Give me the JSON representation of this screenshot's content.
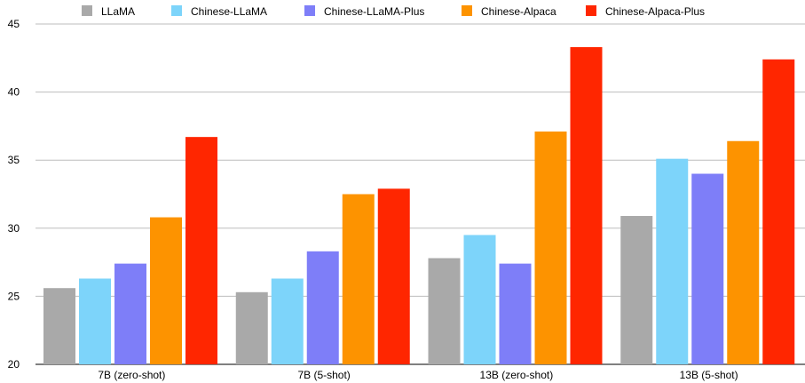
{
  "chart_data": {
    "type": "bar",
    "title": "",
    "xlabel": "",
    "ylabel": "",
    "ylim": [
      20,
      45
    ],
    "yticks": [
      20,
      25,
      30,
      35,
      40,
      45
    ],
    "grid": "horizontal",
    "legend_position": "top",
    "categories": [
      "7B (zero-shot)",
      "7B (5-shot)",
      "13B (zero-shot)",
      "13B (5-shot)"
    ],
    "series": [
      {
        "name": "LLaMA",
        "color": "#a9a9a9",
        "values": [
          25.6,
          25.3,
          27.8,
          30.9
        ]
      },
      {
        "name": "Chinese-LLaMA",
        "color": "#7dd4fa",
        "values": [
          26.3,
          26.3,
          29.5,
          35.1
        ]
      },
      {
        "name": "Chinese-LLaMA-Plus",
        "color": "#7e7ef8",
        "values": [
          27.4,
          28.3,
          27.4,
          34.0
        ]
      },
      {
        "name": "Chinese-Alpaca",
        "color": "#fd9300",
        "values": [
          30.8,
          32.5,
          37.1,
          36.4
        ]
      },
      {
        "name": "Chinese-Alpaca-Plus",
        "color": "#ff2600",
        "values": [
          36.7,
          32.9,
          43.3,
          42.4
        ]
      }
    ]
  }
}
